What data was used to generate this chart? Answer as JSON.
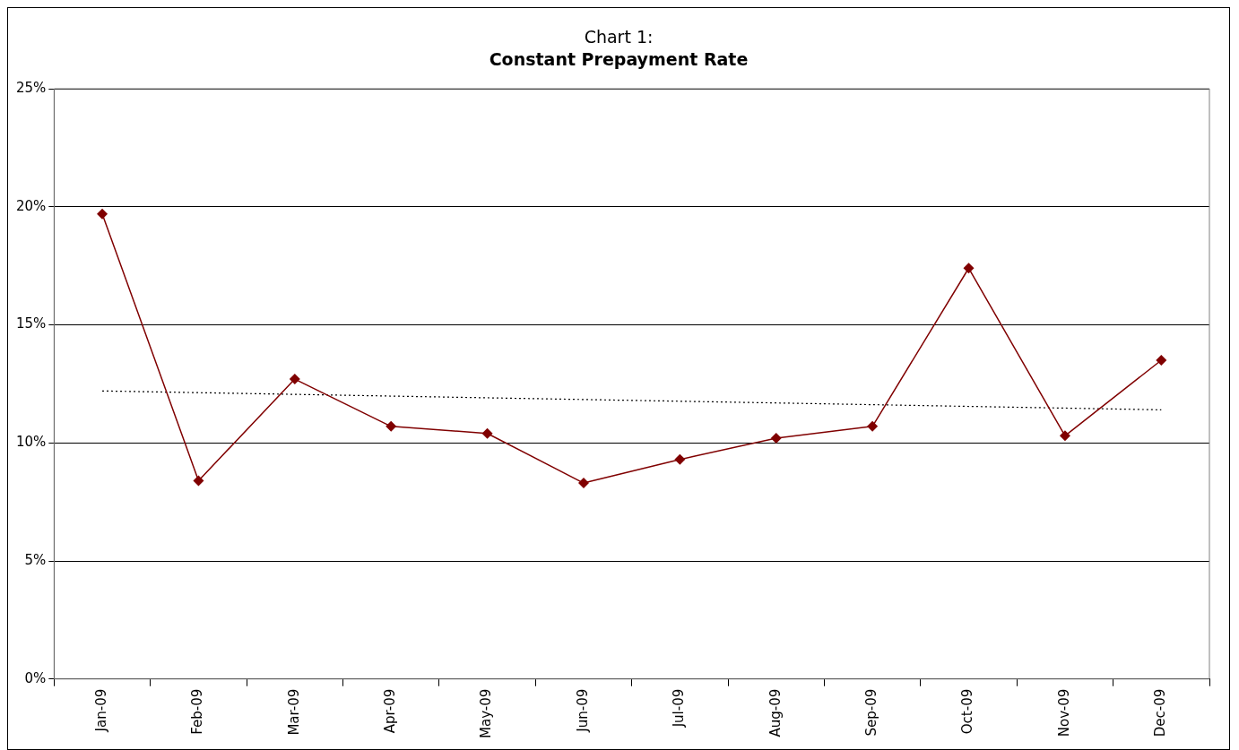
{
  "chart_data": {
    "type": "line",
    "title": "Chart 1:",
    "subtitle": "Constant Prepayment Rate",
    "categories": [
      "Jan-09",
      "Feb-09",
      "Mar-09",
      "Apr-09",
      "May-09",
      "Jun-09",
      "Jul-09",
      "Aug-09",
      "Sep-09",
      "Oct-09",
      "Nov-09",
      "Dec-09"
    ],
    "series": [
      {
        "color": "#800000",
        "marker": "diamond",
        "line_style": "solid",
        "values": [
          19.7,
          8.4,
          12.7,
          10.7,
          10.4,
          8.3,
          9.3,
          10.2,
          10.7,
          17.4,
          10.3,
          13.5
        ]
      },
      {
        "type": "line",
        "color": "#000000",
        "marker": "none",
        "line_style": "dotted",
        "x": [
          "Jan-09",
          "Dec-09"
        ],
        "values": [
          12.2,
          11.4
        ]
      }
    ],
    "ylim": [
      0,
      25
    ],
    "yticks": [
      {
        "value": 0,
        "label": "0%"
      },
      {
        "value": 5,
        "label": "5%"
      },
      {
        "value": 10,
        "label": "10%"
      },
      {
        "value": 15,
        "label": "15%"
      },
      {
        "value": 20,
        "label": "20%"
      },
      {
        "value": 25,
        "label": "25%"
      }
    ],
    "grid": "y",
    "legend": false
  }
}
